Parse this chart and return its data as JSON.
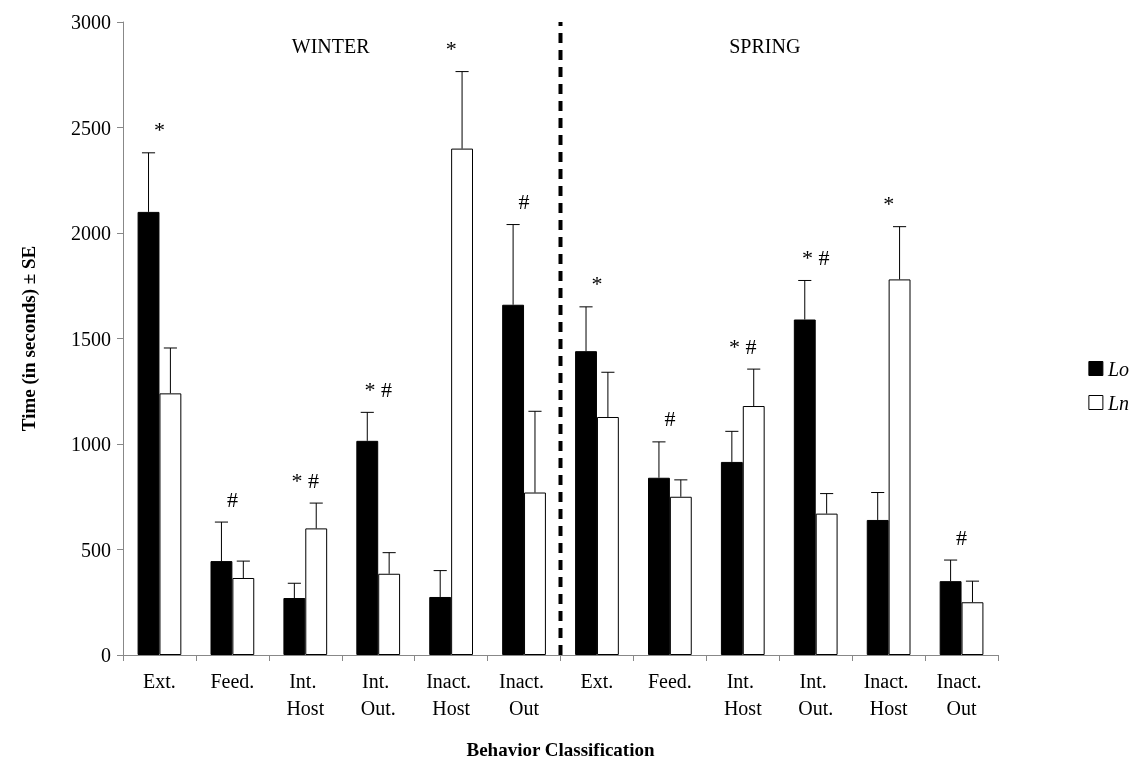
{
  "chart_data": {
    "type": "bar",
    "xlabel": "Behavior Classification",
    "ylabel": "Time (in seconds) ± SE",
    "categories": [
      "Ext.",
      "Feed.",
      "Int. Host",
      "Int. Out.",
      "Inact. Host",
      "Inact. Out",
      "Ext.",
      "Feed.",
      "Int. Host",
      "Int. Out.",
      "Inact. Host",
      "Inact. Out"
    ],
    "series": [
      {
        "name": "Lo",
        "color": "#000000",
        "values": [
          2100,
          445,
          270,
          1015,
          275,
          1660,
          1440,
          840,
          915,
          1590,
          640,
          350
        ],
        "errors": [
          280,
          185,
          70,
          135,
          125,
          380,
          210,
          170,
          145,
          185,
          130,
          100
        ]
      },
      {
        "name": "Ln",
        "color": "#ffffff",
        "values": [
          1240,
          365,
          600,
          385,
          2400,
          770,
          1128,
          750,
          1180,
          670,
          1780,
          250
        ],
        "errors": [
          215,
          80,
          120,
          100,
          365,
          385,
          212,
          80,
          175,
          95,
          250,
          100
        ]
      }
    ],
    "ylim": [
      0,
      3000
    ],
    "yticks": [
      0,
      500,
      1000,
      1500,
      2000,
      2500,
      3000
    ],
    "grid": false,
    "legend": "right",
    "annotations": [
      "WINTER",
      "SPRING",
      "*",
      "#",
      "* #",
      "* #",
      "*",
      "#",
      "*",
      "#",
      "* #",
      "* #",
      "*",
      "#"
    ]
  }
}
